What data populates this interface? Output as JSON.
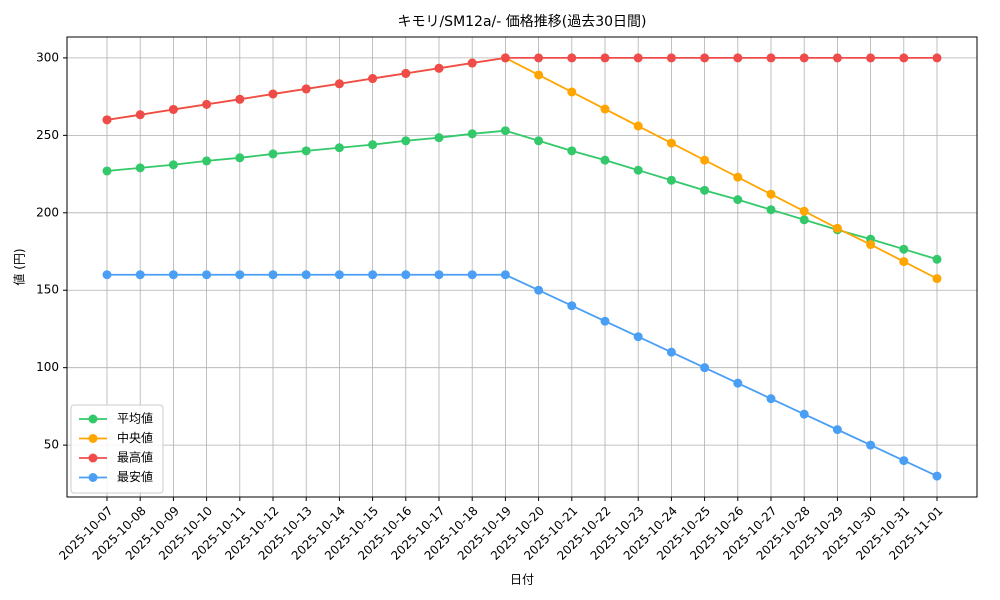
{
  "chart_data": {
    "type": "line",
    "title": "キモリ/SM12a/- 価格推移(過去30日間)",
    "x_label": "日付",
    "y_label": "値 (円)",
    "categories": [
      "2025-10-07",
      "2025-10-08",
      "2025-10-09",
      "2025-10-10",
      "2025-10-11",
      "2025-10-12",
      "2025-10-13",
      "2025-10-14",
      "2025-10-15",
      "2025-10-16",
      "2025-10-17",
      "2025-10-18",
      "2025-10-19",
      "2025-10-20",
      "2025-10-21",
      "2025-10-22",
      "2025-10-23",
      "2025-10-24",
      "2025-10-25",
      "2025-10-26",
      "2025-10-27",
      "2025-10-28",
      "2025-10-29",
      "2025-10-30",
      "2025-10-31",
      "2025-11-01"
    ],
    "series": [
      {
        "name": "平均値",
        "color": "#33c96a",
        "values": [
          227,
          229,
          231,
          233.5,
          235.5,
          238,
          240,
          242,
          244,
          246.5,
          248.5,
          251,
          253,
          246.5,
          240,
          234,
          227.5,
          221,
          214.5,
          208.5,
          202,
          195.5,
          189,
          183,
          176.5,
          170
        ]
      },
      {
        "name": "中央値",
        "color": "#ffa500",
        "values": [
          260,
          263.3,
          266.7,
          270,
          273.3,
          276.7,
          280,
          283.3,
          286.7,
          290,
          293.3,
          296.7,
          300,
          289,
          278,
          267,
          256,
          245,
          234,
          223,
          212,
          201,
          190,
          179.5,
          168.5,
          157.5
        ]
      },
      {
        "name": "最高値",
        "color": "#ef4b4b",
        "values": [
          260,
          263.3,
          266.7,
          270,
          273.3,
          276.7,
          280,
          283.3,
          286.7,
          290,
          293.3,
          296.7,
          300,
          300,
          300,
          300,
          300,
          300,
          300,
          300,
          300,
          300,
          300,
          300,
          300,
          300
        ]
      },
      {
        "name": "最安値",
        "color": "#4a9ff5",
        "values": [
          160,
          160,
          160,
          160,
          160,
          160,
          160,
          160,
          160,
          160,
          160,
          160,
          160,
          150,
          140,
          130,
          120,
          110,
          100,
          90,
          80,
          70,
          60,
          50,
          40,
          30
        ]
      }
    ],
    "ylim": [
      16.5,
      313.5
    ],
    "yticks": [
      50,
      100,
      150,
      200,
      250,
      300
    ],
    "grid": true,
    "legend": "lower left"
  }
}
